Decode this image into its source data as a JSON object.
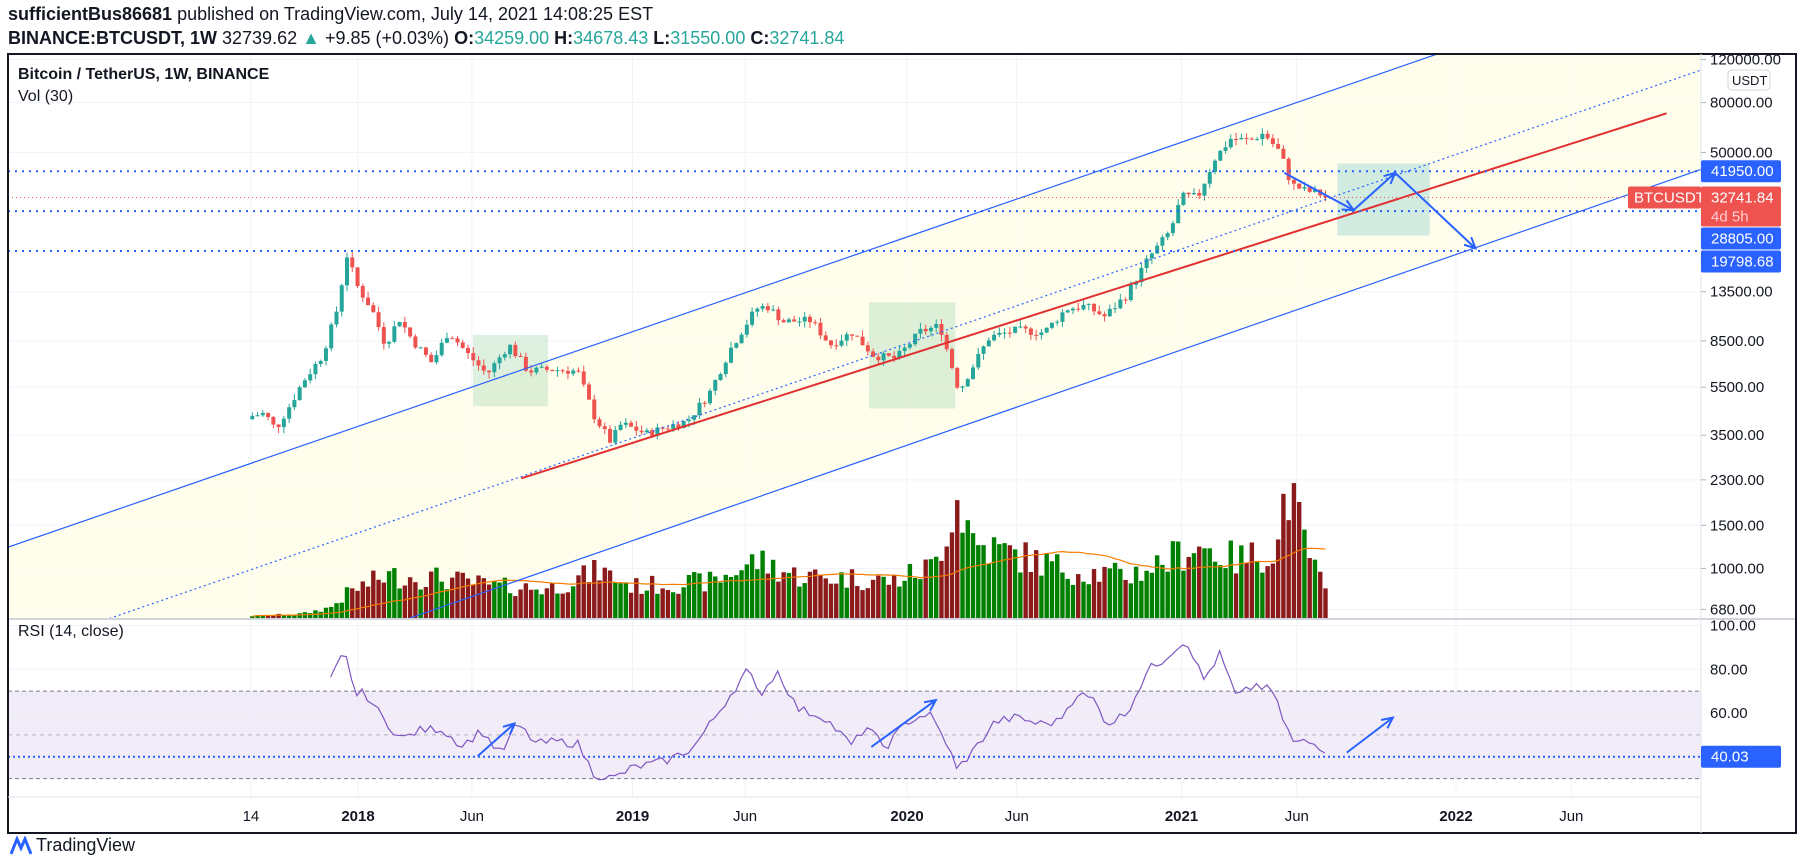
{
  "header": {
    "author": "sufficientBus86681",
    "published": "published on TradingView.com, July 14, 2021 14:08:25 EST",
    "symbol": "BINANCE:BTCUSDT, 1W",
    "last": "32739.62",
    "change": "+9.85 (+0.03%)",
    "o_label": "O:",
    "o": "34259.00",
    "h_label": "H:",
    "h": "34678.43",
    "l_label": "L:",
    "l": "31550.00",
    "c_label": "C:",
    "c": "32741.84"
  },
  "legend": {
    "title": "Bitcoin / TetherUS, 1W, BINANCE",
    "volume": "Vol (30)",
    "rsi": "RSI (14, close)"
  },
  "footer": {
    "brand": "TradingView"
  },
  "colors": {
    "up": "#26a69a",
    "down": "#ef5350",
    "vol_up": "#008000",
    "vol_down": "#8b1a1a",
    "drawing": "#2962ff",
    "trend": "#e03131",
    "rsi": "#7e57c2",
    "vol_ma": "#f57c00"
  },
  "chart_data": {
    "type": "candlestick",
    "title": "Bitcoin / TetherUS, 1W, BINANCE",
    "scale": "log",
    "currency_label": "USDT",
    "price_ticks": [
      120000,
      80000,
      50000,
      13500,
      8500,
      5500,
      3500,
      2300,
      1500,
      1000,
      680
    ],
    "price_tick_labels": [
      "120000.00",
      "80000.00",
      "50000.00",
      "13500.00",
      "8500.00",
      "5500.00",
      "3500.00",
      "2300.00",
      "1500.00",
      "1000.00",
      "680.00"
    ],
    "time_ticks": [
      {
        "label": "14",
        "t": 2017.61,
        "bold": false
      },
      {
        "label": "2018",
        "t": 2018.0,
        "bold": true
      },
      {
        "label": "Jun",
        "t": 2018.415,
        "bold": false
      },
      {
        "label": "2019",
        "t": 2019.0,
        "bold": true
      },
      {
        "label": "Jun",
        "t": 2019.41,
        "bold": false
      },
      {
        "label": "2020",
        "t": 2020.0,
        "bold": true
      },
      {
        "label": "Jun",
        "t": 2020.4,
        "bold": false
      },
      {
        "label": "2021",
        "t": 2021.0,
        "bold": true
      },
      {
        "label": "Jun",
        "t": 2021.42,
        "bold": false
      },
      {
        "label": "2022",
        "t": 2022.0,
        "bold": true
      },
      {
        "label": "Jun",
        "t": 2022.42,
        "bold": false
      }
    ],
    "weekly_close_keypoints": [
      [
        2017.615,
        4200
      ],
      [
        2017.66,
        4300
      ],
      [
        2017.7,
        3700
      ],
      [
        2017.75,
        4600
      ],
      [
        2017.8,
        5800
      ],
      [
        2017.87,
        7400
      ],
      [
        2017.92,
        11000
      ],
      [
        2017.96,
        19000
      ],
      [
        2018.0,
        14000
      ],
      [
        2018.05,
        11500
      ],
      [
        2018.1,
        8200
      ],
      [
        2018.15,
        10500
      ],
      [
        2018.2,
        8500
      ],
      [
        2018.27,
        6900
      ],
      [
        2018.33,
        9300
      ],
      [
        2018.4,
        7500
      ],
      [
        2018.47,
        6200
      ],
      [
        2018.55,
        8200
      ],
      [
        2018.62,
        6400
      ],
      [
        2018.7,
        6500
      ],
      [
        2018.8,
        6400
      ],
      [
        2018.86,
        4200
      ],
      [
        2018.92,
        3300
      ],
      [
        2018.96,
        3900
      ],
      [
        2019.05,
        3550
      ],
      [
        2019.13,
        3800
      ],
      [
        2019.2,
        4000
      ],
      [
        2019.28,
        5200
      ],
      [
        2019.36,
        8000
      ],
      [
        2019.45,
        11500
      ],
      [
        2019.49,
        11800
      ],
      [
        2019.55,
        10200
      ],
      [
        2019.65,
        10300
      ],
      [
        2019.72,
        8200
      ],
      [
        2019.8,
        9200
      ],
      [
        2019.88,
        7400
      ],
      [
        2019.96,
        7200
      ],
      [
        2020.05,
        9300
      ],
      [
        2020.12,
        9800
      ],
      [
        2020.19,
        5300
      ],
      [
        2020.23,
        6400
      ],
      [
        2020.3,
        8800
      ],
      [
        2020.4,
        9400
      ],
      [
        2020.5,
        9200
      ],
      [
        2020.58,
        11500
      ],
      [
        2020.65,
        11800
      ],
      [
        2020.72,
        10700
      ],
      [
        2020.8,
        13100
      ],
      [
        2020.88,
        18500
      ],
      [
        2020.96,
        24000
      ],
      [
        2021.0,
        33000
      ],
      [
        2021.06,
        33000
      ],
      [
        2021.12,
        47000
      ],
      [
        2021.18,
        57000
      ],
      [
        2021.25,
        56000
      ],
      [
        2021.3,
        60000
      ],
      [
        2021.36,
        50000
      ],
      [
        2021.4,
        37000
      ],
      [
        2021.45,
        35000
      ],
      [
        2021.5,
        34000
      ],
      [
        2021.539,
        32741
      ]
    ],
    "volume_keypoints": [
      [
        2017.615,
        2
      ],
      [
        2017.8,
        4
      ],
      [
        2017.9,
        10
      ],
      [
        2017.97,
        25
      ],
      [
        2018.1,
        40
      ],
      [
        2018.3,
        38
      ],
      [
        2018.5,
        30
      ],
      [
        2018.7,
        28
      ],
      [
        2018.88,
        45
      ],
      [
        2019.0,
        30
      ],
      [
        2019.3,
        35
      ],
      [
        2019.45,
        55
      ],
      [
        2019.6,
        40
      ],
      [
        2019.8,
        38
      ],
      [
        2019.95,
        35
      ],
      [
        2020.1,
        50
      ],
      [
        2020.18,
        115
      ],
      [
        2020.25,
        70
      ],
      [
        2020.4,
        60
      ],
      [
        2020.6,
        45
      ],
      [
        2020.8,
        40
      ],
      [
        2020.95,
        55
      ],
      [
        2021.05,
        70
      ],
      [
        2021.2,
        55
      ],
      [
        2021.35,
        65
      ],
      [
        2021.38,
        130
      ],
      [
        2021.45,
        70
      ],
      [
        2021.5,
        40
      ],
      [
        2021.539,
        12
      ]
    ],
    "rsi_keypoints": [
      [
        2017.9,
        75
      ],
      [
        2017.95,
        88
      ],
      [
        2018.0,
        66
      ],
      [
        2018.02,
        70
      ],
      [
        2018.1,
        56
      ],
      [
        2018.16,
        48
      ],
      [
        2018.22,
        52
      ],
      [
        2018.3,
        53
      ],
      [
        2018.38,
        45
      ],
      [
        2018.45,
        52
      ],
      [
        2018.52,
        41
      ],
      [
        2018.58,
        55
      ],
      [
        2018.65,
        46
      ],
      [
        2018.72,
        47
      ],
      [
        2018.8,
        46
      ],
      [
        2018.86,
        32
      ],
      [
        2018.93,
        30
      ],
      [
        2019.0,
        35
      ],
      [
        2019.12,
        38
      ],
      [
        2019.22,
        44
      ],
      [
        2019.3,
        58
      ],
      [
        2019.42,
        80
      ],
      [
        2019.46,
        68
      ],
      [
        2019.53,
        79
      ],
      [
        2019.6,
        62
      ],
      [
        2019.7,
        58
      ],
      [
        2019.8,
        45
      ],
      [
        2019.85,
        54
      ],
      [
        2019.92,
        44
      ],
      [
        2020.0,
        56
      ],
      [
        2020.08,
        60
      ],
      [
        2020.15,
        45
      ],
      [
        2020.18,
        34
      ],
      [
        2020.25,
        44
      ],
      [
        2020.32,
        56
      ],
      [
        2020.4,
        58
      ],
      [
        2020.48,
        55
      ],
      [
        2020.55,
        56
      ],
      [
        2020.62,
        69
      ],
      [
        2020.68,
        66
      ],
      [
        2020.73,
        55
      ],
      [
        2020.8,
        60
      ],
      [
        2020.88,
        80
      ],
      [
        2020.93,
        84
      ],
      [
        2020.98,
        90
      ],
      [
        2021.02,
        93
      ],
      [
        2021.08,
        75
      ],
      [
        2021.14,
        87
      ],
      [
        2021.2,
        67
      ],
      [
        2021.27,
        73
      ],
      [
        2021.33,
        70
      ],
      [
        2021.38,
        54
      ],
      [
        2021.41,
        46
      ],
      [
        2021.45,
        47
      ],
      [
        2021.5,
        45
      ],
      [
        2021.539,
        42
      ]
    ],
    "rsi_levels": {
      "upper": 70,
      "middle": 50,
      "lower": 30
    },
    "rsi_ticks": [
      100,
      80,
      60
    ],
    "rsi_tick_labels": [
      "100.00",
      "80.00",
      "60.00"
    ],
    "horizontal_levels": [
      {
        "price": 41950,
        "label": "41950.00"
      },
      {
        "price": 28805,
        "label": "28805.00"
      },
      {
        "price": 19798.68,
        "label": "19798.68"
      }
    ],
    "current_price": {
      "symbol": "BTCUSDT",
      "price": 32741.84,
      "label": "32741.84",
      "countdown": "4d 5h"
    },
    "rsi_current": {
      "value": 40.03,
      "label": "40.03"
    },
    "channel": {
      "upper": [
        [
          2016.725,
          1221
        ],
        [
          2021.937,
          126900
        ]
      ],
      "middle": [
        [
          2017.094,
          624
        ],
        [
          2022.893,
          108700
        ]
      ],
      "lower": [
        [
          2018.184,
          624
        ],
        [
          2022.893,
          42700
        ]
      ]
    },
    "trendline": [
      [
        2018.595,
        2333
      ],
      [
        2022.767,
        72300
      ]
    ],
    "rectangles": [
      {
        "t1": 2018.419,
        "t2": 2018.692,
        "p1": 9000,
        "p2": 4600,
        "color": "green"
      },
      {
        "t1": 2019.862,
        "t2": 2020.176,
        "p1": 12230,
        "p2": 4500,
        "color": "green"
      },
      {
        "t1": 2021.568,
        "t2": 2021.904,
        "p1": 45100,
        "p2": 22900,
        "color": "teal"
      }
    ],
    "price_arrows": [
      [
        [
          2021.375,
          41300
        ],
        [
          2021.627,
          29100
        ]
      ],
      [
        [
          2021.627,
          29100
        ],
        [
          2021.778,
          41300
        ]
      ],
      [
        [
          2021.778,
          41300
        ],
        [
          2022.071,
          20300
        ]
      ]
    ],
    "rsi_arrows": [
      [
        [
          2018.436,
          40.3
        ],
        [
          2018.57,
          55.2
        ]
      ],
      [
        [
          2019.87,
          44.5
        ],
        [
          2020.105,
          65.9
        ]
      ],
      [
        [
          2021.602,
          41.9
        ],
        [
          2021.77,
          57.9
        ]
      ]
    ]
  }
}
